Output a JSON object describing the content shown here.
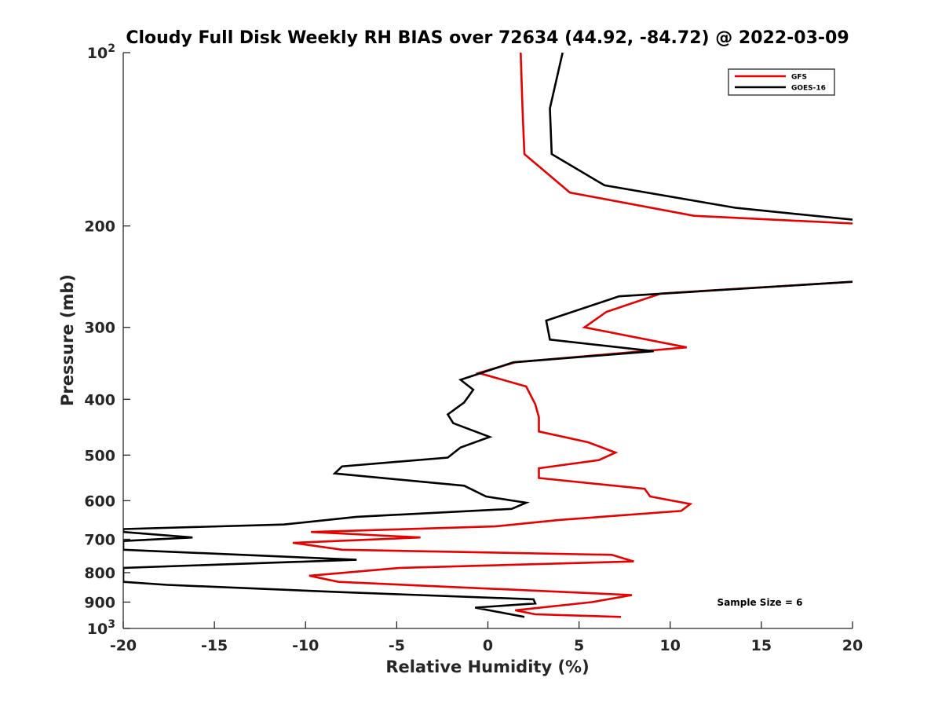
{
  "chart_data": {
    "type": "line",
    "title": "Cloudy Full Disk Weekly RH BIAS over 72634 (44.92, -84.72) @ 2022-03-09",
    "xlabel": "Relative Humidity (%)",
    "ylabel": "Pressure (mb)",
    "xlim": [
      -20,
      20
    ],
    "ylim": [
      100,
      1000
    ],
    "yscale": "log",
    "y_reversed": true,
    "grid": false,
    "legend_position": "top-right",
    "annotation": "Sample Size = 6",
    "x_ticks": [
      -20,
      -15,
      -10,
      -5,
      0,
      5,
      10,
      15,
      20
    ],
    "x_tick_labels": [
      "-20",
      "-15",
      "-10",
      "-5",
      "0",
      "5",
      "10",
      "15",
      "20"
    ],
    "y_ticks": [
      {
        "value": 100,
        "base": "10",
        "exp": "2"
      },
      {
        "value": 200,
        "label": "200"
      },
      {
        "value": 300,
        "label": "300"
      },
      {
        "value": 400,
        "label": "400"
      },
      {
        "value": 500,
        "label": "500"
      },
      {
        "value": 600,
        "label": "600"
      },
      {
        "value": 700,
        "label": "700"
      },
      {
        "value": 800,
        "label": "800"
      },
      {
        "value": 900,
        "label": "900"
      },
      {
        "value": 1000,
        "base": "10",
        "exp": "3"
      }
    ],
    "series": [
      {
        "name": "GFS",
        "color": "#e60000",
        "points": [
          [
            1.8,
            100
          ],
          [
            1.9,
            125
          ],
          [
            2.0,
            150
          ],
          [
            4.5,
            175
          ],
          [
            11.3,
            192
          ],
          [
            20.0,
            198
          ],
          [
            null,
            null
          ],
          [
            20.0,
            250
          ],
          [
            9.5,
            262
          ],
          [
            6.5,
            282
          ],
          [
            5.3,
            300
          ],
          [
            10.9,
            325
          ],
          [
            1.5,
            345
          ],
          [
            -0.5,
            360
          ],
          [
            2.1,
            380
          ],
          [
            2.6,
            408
          ],
          [
            2.8,
            430
          ],
          [
            2.8,
            455
          ],
          [
            5.5,
            475
          ],
          [
            7.0,
            495
          ],
          [
            6.1,
            510
          ],
          [
            2.8,
            527
          ],
          [
            2.8,
            548
          ],
          [
            8.6,
            572
          ],
          [
            8.9,
            590
          ],
          [
            11.1,
            608
          ],
          [
            10.6,
            625
          ],
          [
            3.9,
            648
          ],
          [
            0.4,
            665
          ],
          [
            -9.7,
            680
          ],
          [
            -3.7,
            695
          ],
          [
            -10.7,
            710
          ],
          [
            -8.0,
            730
          ],
          [
            6.8,
            745
          ],
          [
            8.0,
            765
          ],
          [
            -4.8,
            785
          ],
          [
            -9.8,
            810
          ],
          [
            -8.2,
            830
          ],
          [
            7.9,
            875
          ],
          [
            5.7,
            900
          ],
          [
            1.5,
            930
          ],
          [
            2.6,
            945
          ],
          [
            7.3,
            955
          ]
        ]
      },
      {
        "name": "GOES-16",
        "color": "#000000",
        "points": [
          [
            4.1,
            100
          ],
          [
            3.4,
            125
          ],
          [
            3.5,
            150
          ],
          [
            6.4,
            170
          ],
          [
            13.6,
            186
          ],
          [
            20.0,
            195
          ],
          [
            null,
            null
          ],
          [
            20.0,
            250
          ],
          [
            7.2,
            265
          ],
          [
            3.2,
            292
          ],
          [
            3.4,
            315
          ],
          [
            9.1,
            330
          ],
          [
            1.4,
            345
          ],
          [
            -1.5,
            370
          ],
          [
            -0.8,
            385
          ],
          [
            -1.3,
            405
          ],
          [
            -2.2,
            425
          ],
          [
            -1.9,
            440
          ],
          [
            0.1,
            465
          ],
          [
            -1.5,
            485
          ],
          [
            -2.2,
            505
          ],
          [
            -8.0,
            523
          ],
          [
            -8.4,
            538
          ],
          [
            -1.3,
            565
          ],
          [
            -0.1,
            590
          ],
          [
            2.1,
            605
          ],
          [
            1.3,
            620
          ],
          [
            -7.2,
            640
          ],
          [
            -11.2,
            660
          ],
          [
            -20.0,
            672
          ],
          [
            -20.0,
            680
          ],
          [
            -16.2,
            695
          ],
          [
            -20.0,
            705
          ],
          [
            -20.0,
            730
          ],
          [
            -7.2,
            760
          ],
          [
            -20.0,
            785
          ],
          [
            -20.0,
            830
          ],
          [
            -17.6,
            840
          ],
          [
            -8.0,
            865
          ],
          [
            2.5,
            890
          ],
          [
            2.6,
            905
          ],
          [
            -0.7,
            920
          ],
          [
            2.0,
            955
          ]
        ]
      }
    ]
  }
}
